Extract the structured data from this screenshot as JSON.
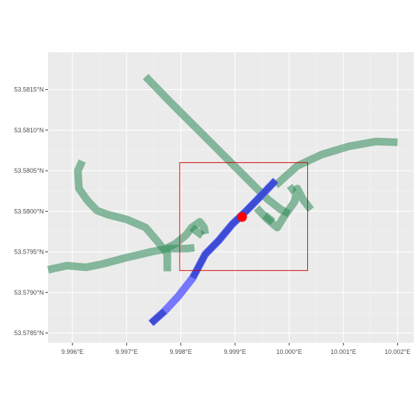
{
  "chart_data": {
    "type": "map",
    "title": "",
    "xlabel": "",
    "ylabel": "",
    "xlim": [
      9.99555,
      10.0023
    ],
    "ylim": [
      53.57838,
      53.58196
    ],
    "grid": true,
    "x_ticks": [
      {
        "value": 9.996,
        "label": "9.996°E"
      },
      {
        "value": 9.997,
        "label": "9.997°E"
      },
      {
        "value": 9.998,
        "label": "9.998°E"
      },
      {
        "value": 9.999,
        "label": "9.999°E"
      },
      {
        "value": 10.0,
        "label": "10.000°E"
      },
      {
        "value": 10.001,
        "label": "10.001°E"
      },
      {
        "value": 10.002,
        "label": "10.002°E"
      }
    ],
    "y_ticks": [
      {
        "value": 53.5785,
        "label": "53.5785°N"
      },
      {
        "value": 53.579,
        "label": "53.5790°N"
      },
      {
        "value": 53.5795,
        "label": "53.5795°N"
      },
      {
        "value": 53.58,
        "label": "53.5800°N"
      },
      {
        "value": 53.5805,
        "label": "53.5805°N"
      },
      {
        "value": 53.581,
        "label": "53.5810°N"
      },
      {
        "value": 53.5815,
        "label": "53.5815°N"
      }
    ],
    "series": [
      {
        "role": "network",
        "color": "#2e8b57",
        "opacity": 0.55,
        "lines": [
          [
            [
              9.99735,
              53.58166
            ],
            [
              9.9978,
              53.58135
            ],
            [
              9.9984,
              53.58095
            ],
            [
              9.999,
              53.58055
            ],
            [
              9.9996,
              53.58015
            ],
            [
              9.99985,
              53.58002
            ],
            [
              10.0,
              53.57997
            ]
          ],
          [
            [
              9.99975,
              53.58032
            ],
            [
              10.00015,
              53.58056
            ],
            [
              10.0006,
              53.5807
            ],
            [
              10.0011,
              53.5808
            ],
            [
              10.0016,
              53.58086
            ],
            [
              10.002,
              53.58085
            ]
          ],
          [
            [
              9.99618,
              53.58062
            ],
            [
              9.9961,
              53.5805
            ],
            [
              9.99612,
              53.58028
            ],
            [
              9.99628,
              53.58013
            ],
            [
              9.99645,
              53.58001
            ],
            [
              9.99665,
              53.57996
            ],
            [
              9.997,
              53.5799
            ],
            [
              9.99735,
              53.5798
            ],
            [
              9.99758,
              53.57962
            ],
            [
              9.99775,
              53.57948
            ],
            [
              9.99775,
              53.57926
            ]
          ],
          [
            [
              9.99555,
              53.57928
            ],
            [
              9.9959,
              53.57933
            ],
            [
              9.99625,
              53.57931
            ],
            [
              9.99655,
              53.57935
            ],
            [
              9.997,
              53.57943
            ],
            [
              9.99745,
              53.5795
            ],
            [
              9.99775,
              53.57954
            ],
            [
              9.9981,
              53.57954
            ],
            [
              9.99825,
              53.57955
            ]
          ],
          [
            [
              9.99775,
              53.57955
            ],
            [
              9.9979,
              53.5796
            ],
            [
              9.9981,
              53.57971
            ],
            [
              9.9982,
              53.5798
            ],
            [
              9.99835,
              53.57987
            ],
            [
              9.99843,
              53.5798
            ],
            [
              9.99845,
              53.57972
            ]
          ],
          [
            [
              9.9982,
              53.5798
            ],
            [
              9.9984,
              53.5797
            ]
          ],
          [
            [
              9.9994,
              53.58004
            ],
            [
              9.9996,
              53.5799
            ],
            [
              9.99978,
              53.5798
            ],
            [
              9.9999,
              53.57993
            ],
            [
              10.0001,
              53.58012
            ],
            [
              10.00015,
              53.58028
            ],
            [
              10.00025,
              53.58015
            ],
            [
              10.0004,
              53.58002
            ]
          ],
          [
            [
              9.99955,
              53.57995
            ],
            [
              9.9997,
              53.57987
            ]
          ],
          [
            [
              10.0,
              53.58025
            ],
            [
              10.0001,
              53.5803
            ]
          ]
        ]
      },
      {
        "role": "route-outer",
        "color": "#6a6aff",
        "opacity": 0.9,
        "points": [
          [
            9.99745,
            53.57862
          ],
          [
            9.9977,
            53.57877
          ],
          [
            9.99795,
            53.57895
          ],
          [
            9.99822,
            53.57918
          ],
          [
            9.99845,
            53.57947
          ],
          [
            9.9987,
            53.57964
          ],
          [
            9.99895,
            53.57984
          ],
          [
            9.9992,
            53.58
          ],
          [
            9.99945,
            53.58017
          ],
          [
            9.99975,
            53.58038
          ]
        ]
      },
      {
        "role": "route-inner",
        "color": "#3344cc",
        "opacity": 0.85,
        "points": [
          [
            9.99822,
            53.57918
          ],
          [
            9.99845,
            53.57947
          ],
          [
            9.9987,
            53.57964
          ],
          [
            9.99895,
            53.57984
          ],
          [
            9.9992,
            53.58
          ],
          [
            9.99945,
            53.58017
          ],
          [
            9.99975,
            53.58038
          ]
        ]
      },
      {
        "role": "route-tail",
        "color": "#3344cc",
        "opacity": 0.85,
        "points": [
          [
            9.99745,
            53.57862
          ],
          [
            9.9977,
            53.57877
          ]
        ]
      }
    ],
    "marker": {
      "x": 9.99913,
      "y": 53.57993,
      "color": "#ff0000"
    },
    "bbox_rect": {
      "xmin": 9.99798,
      "xmax": 10.00034,
      "ymin": 53.57927,
      "ymax": 53.5806,
      "color": "#cc0000"
    }
  },
  "colors": {
    "panel_background": "#ebebeb",
    "page_background": "#ffffff",
    "grid": "#ffffff",
    "tick_text": "#4d4d4d"
  }
}
